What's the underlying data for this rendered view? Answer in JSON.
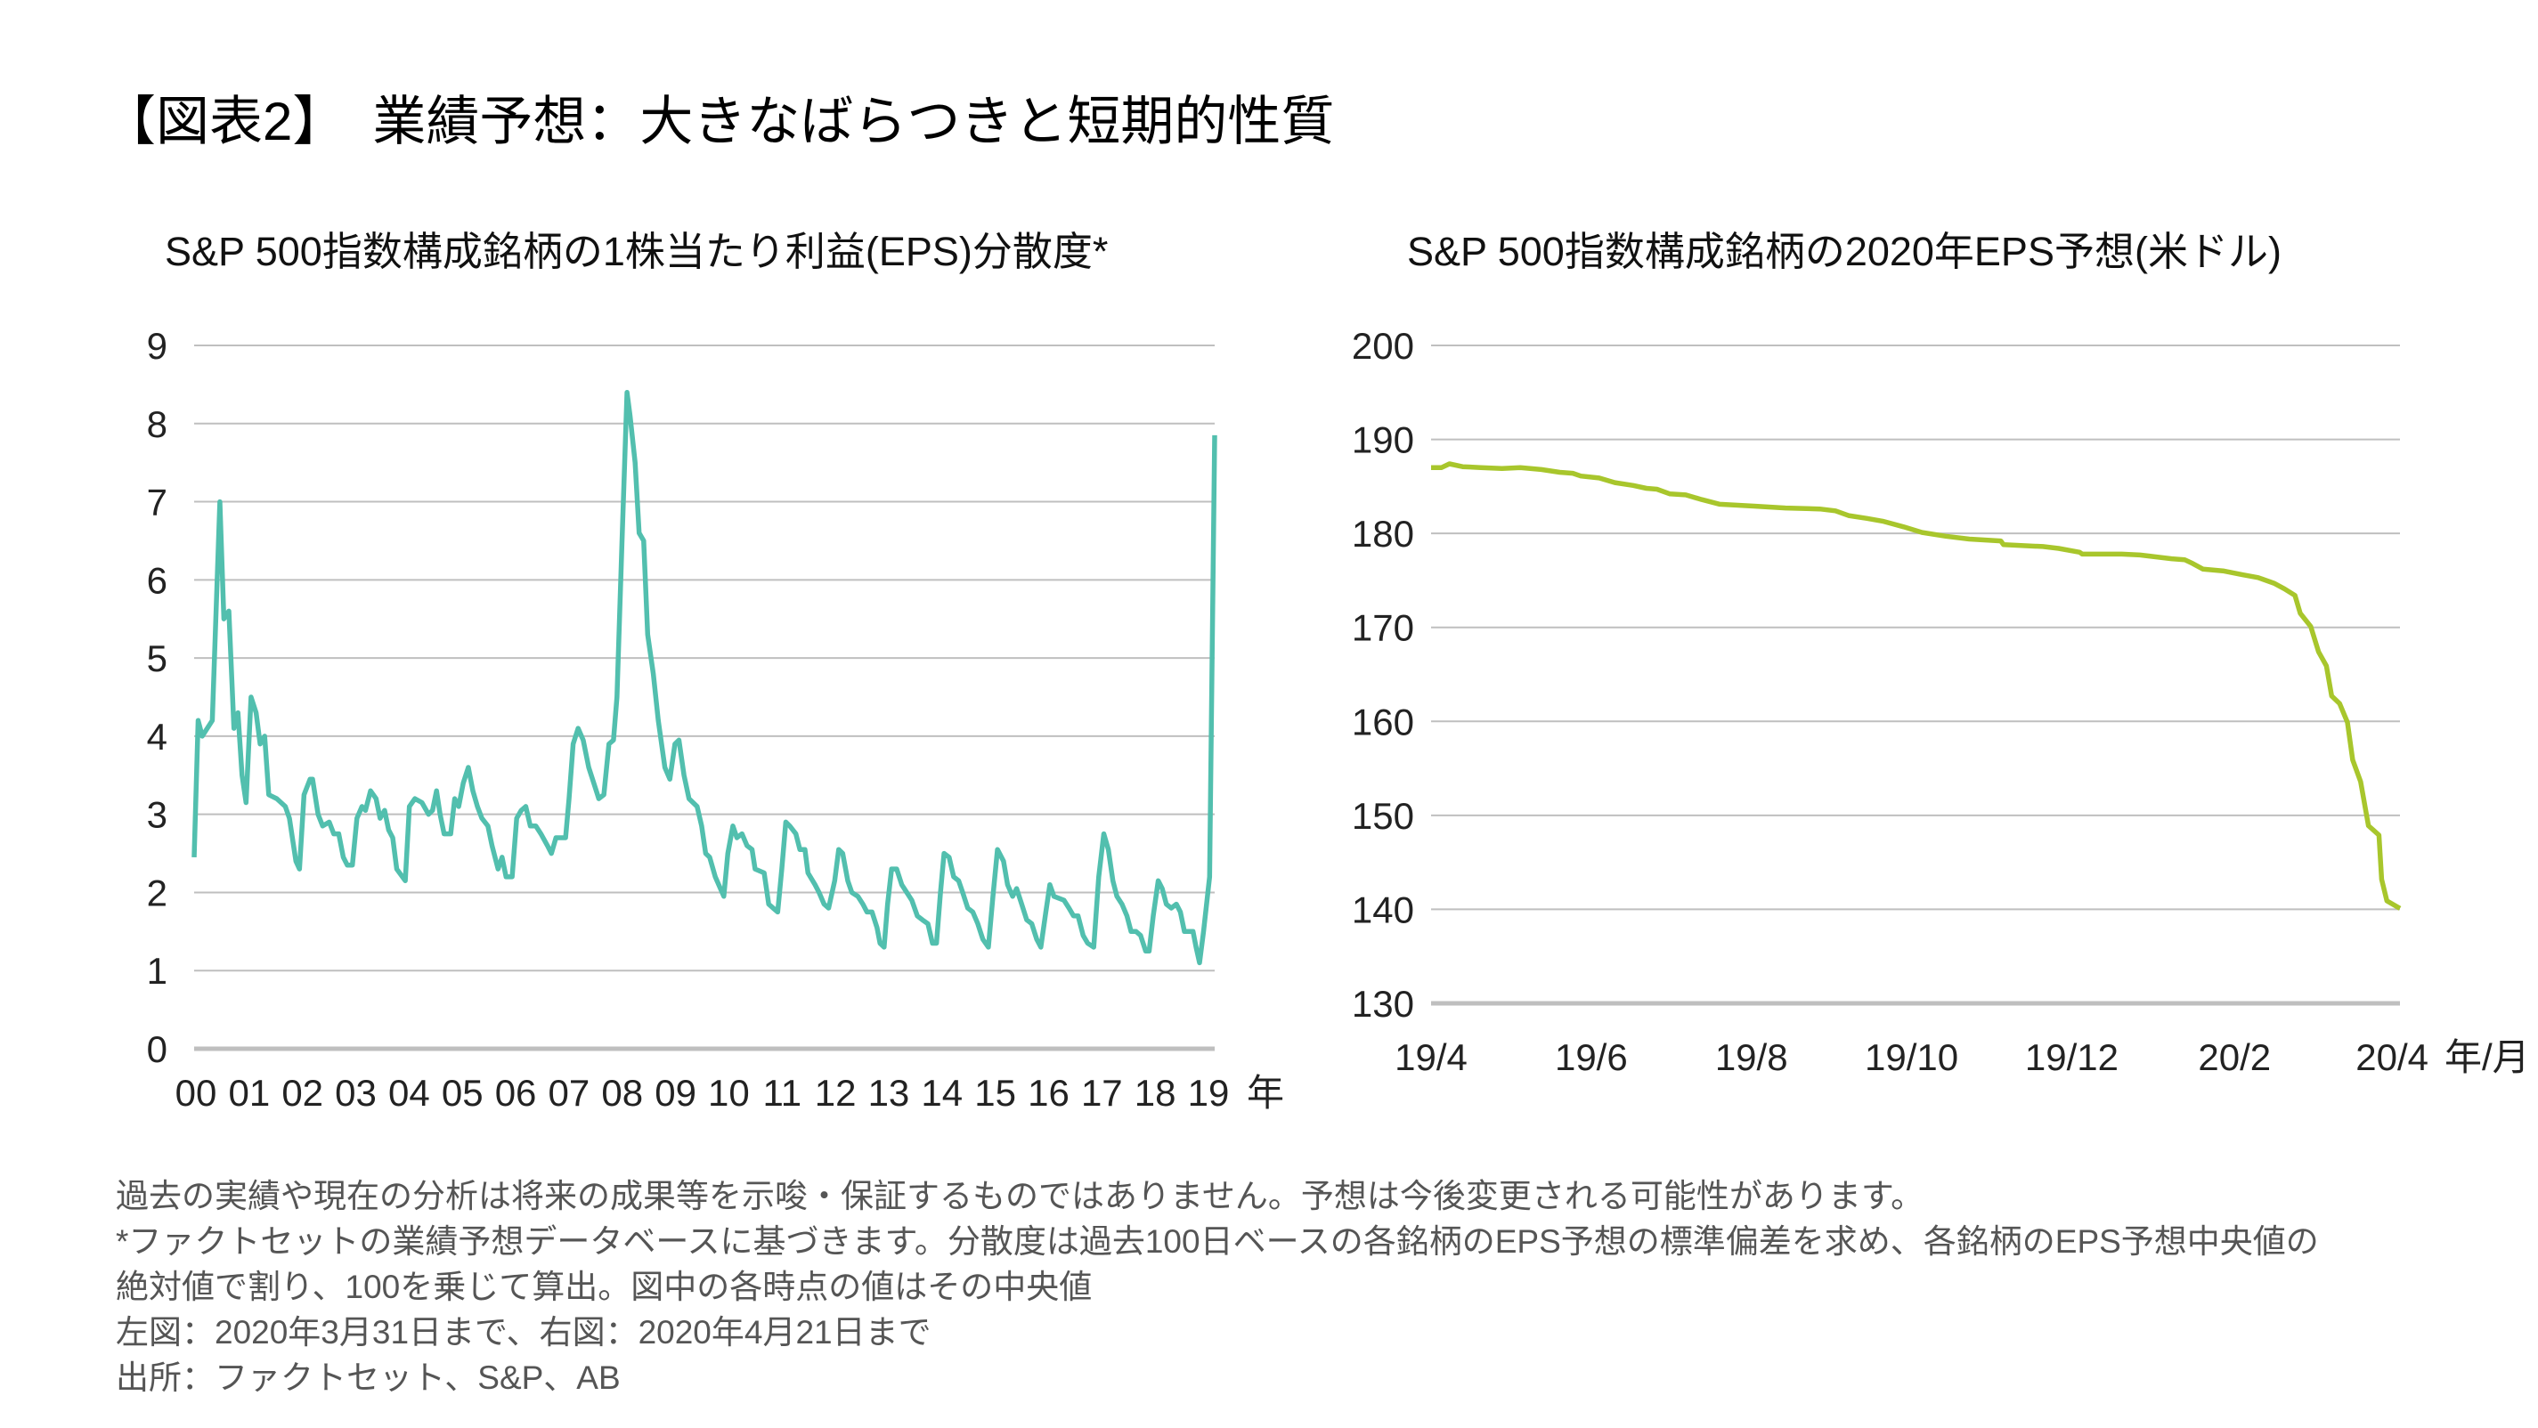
{
  "title": "【図表2】　業績予想：大きなばらつきと短期的性質",
  "footnotes": [
    "過去の実績や現在の分析は将来の成果等を示唆・保証するものではありません。予想は今後変更される可能性があります。",
    "*ファクトセットの業績予想データベースに基づきます。分散度は過去100日ベースの各銘柄のEPS予想の標準偏差を求め、各銘柄のEPS予想中央値の",
    "絶対値で割り、100を乗じて算出。図中の各時点の値はその中央値",
    "左図：2020年3月31日まで、右図：2020年4月21日まで",
    "出所：ファクトセット、S&P、AB"
  ],
  "chart_data": [
    {
      "type": "line",
      "title": "S&P 500指数構成銘柄の1株当たり利益(EPS)分散度*",
      "xlabel": "年",
      "ylabel": "",
      "color": "#52bfae",
      "ylim": [
        0,
        9
      ],
      "yticks": [
        0,
        1,
        2,
        3,
        4,
        5,
        6,
        7,
        8,
        9
      ],
      "xlim": [
        2000.0,
        2020.25
      ],
      "xtick_labels": [
        "00",
        "01",
        "02",
        "03",
        "04",
        "05",
        "06",
        "07",
        "08",
        "09",
        "10",
        "11",
        "12",
        "13",
        "14",
        "15",
        "16",
        "17",
        "18",
        "19"
      ],
      "grid": true,
      "points": [
        [
          2000.0,
          2.45
        ],
        [
          2000.08,
          4.2
        ],
        [
          2000.16,
          4.0
        ],
        [
          2000.36,
          4.2
        ],
        [
          2000.51,
          7.0
        ],
        [
          2000.59,
          5.5
        ],
        [
          2000.69,
          5.6
        ],
        [
          2000.79,
          4.1
        ],
        [
          2000.87,
          4.3
        ],
        [
          2000.95,
          3.5
        ],
        [
          2001.03,
          3.15
        ],
        [
          2001.13,
          4.5
        ],
        [
          2001.23,
          4.3
        ],
        [
          2001.31,
          3.9
        ],
        [
          2001.4,
          4.0
        ],
        [
          2001.48,
          3.25
        ],
        [
          2001.64,
          3.2
        ],
        [
          2001.81,
          3.1
        ],
        [
          2001.89,
          2.95
        ],
        [
          2002.02,
          2.4
        ],
        [
          2002.09,
          2.3
        ],
        [
          2002.18,
          3.25
        ],
        [
          2002.3,
          3.45
        ],
        [
          2002.35,
          3.45
        ],
        [
          2002.46,
          3.0
        ],
        [
          2002.55,
          2.85
        ],
        [
          2002.68,
          2.9
        ],
        [
          2002.77,
          2.75
        ],
        [
          2002.87,
          2.75
        ],
        [
          2002.96,
          2.45
        ],
        [
          2003.04,
          2.35
        ],
        [
          2003.14,
          2.35
        ],
        [
          2003.23,
          2.95
        ],
        [
          2003.33,
          3.1
        ],
        [
          2003.4,
          3.05
        ],
        [
          2003.5,
          3.3
        ],
        [
          2003.61,
          3.2
        ],
        [
          2003.69,
          2.95
        ],
        [
          2003.78,
          3.05
        ],
        [
          2003.86,
          2.8
        ],
        [
          2003.94,
          2.7
        ],
        [
          2004.02,
          2.3
        ],
        [
          2004.19,
          2.15
        ],
        [
          2004.27,
          3.1
        ],
        [
          2004.38,
          3.2
        ],
        [
          2004.52,
          3.15
        ],
        [
          2004.65,
          3.0
        ],
        [
          2004.73,
          3.05
        ],
        [
          2004.81,
          3.3
        ],
        [
          2004.88,
          3.0
        ],
        [
          2004.96,
          2.75
        ],
        [
          2005.09,
          2.75
        ],
        [
          2005.17,
          3.2
        ],
        [
          2005.25,
          3.1
        ],
        [
          2005.34,
          3.4
        ],
        [
          2005.44,
          3.6
        ],
        [
          2005.53,
          3.3
        ],
        [
          2005.62,
          3.1
        ],
        [
          2005.71,
          2.95
        ],
        [
          2005.83,
          2.85
        ],
        [
          2005.91,
          2.6
        ],
        [
          2006.03,
          2.3
        ],
        [
          2006.11,
          2.45
        ],
        [
          2006.19,
          2.2
        ],
        [
          2006.31,
          2.2
        ],
        [
          2006.4,
          2.95
        ],
        [
          2006.49,
          3.05
        ],
        [
          2006.58,
          3.1
        ],
        [
          2006.67,
          2.85
        ],
        [
          2006.78,
          2.85
        ],
        [
          2006.88,
          2.75
        ],
        [
          2007.01,
          2.6
        ],
        [
          2007.09,
          2.5
        ],
        [
          2007.18,
          2.7
        ],
        [
          2007.37,
          2.7
        ],
        [
          2007.44,
          3.2
        ],
        [
          2007.52,
          3.9
        ],
        [
          2007.62,
          4.1
        ],
        [
          2007.72,
          3.95
        ],
        [
          2007.83,
          3.6
        ],
        [
          2007.93,
          3.4
        ],
        [
          2008.03,
          3.2
        ],
        [
          2008.13,
          3.25
        ],
        [
          2008.23,
          3.9
        ],
        [
          2008.32,
          3.95
        ],
        [
          2008.39,
          4.5
        ],
        [
          2008.49,
          6.5
        ],
        [
          2008.59,
          8.4
        ],
        [
          2008.65,
          8.1
        ],
        [
          2008.75,
          7.5
        ],
        [
          2008.83,
          6.6
        ],
        [
          2008.92,
          6.5
        ],
        [
          2009.0,
          5.3
        ],
        [
          2009.11,
          4.8
        ],
        [
          2009.21,
          4.2
        ],
        [
          2009.34,
          3.6
        ],
        [
          2009.44,
          3.45
        ],
        [
          2009.54,
          3.9
        ],
        [
          2009.62,
          3.95
        ],
        [
          2009.72,
          3.5
        ],
        [
          2009.82,
          3.2
        ],
        [
          2009.98,
          3.1
        ],
        [
          2010.07,
          2.85
        ],
        [
          2010.15,
          2.5
        ],
        [
          2010.23,
          2.45
        ],
        [
          2010.34,
          2.2
        ],
        [
          2010.51,
          1.95
        ],
        [
          2010.59,
          2.5
        ],
        [
          2010.69,
          2.85
        ],
        [
          2010.77,
          2.7
        ],
        [
          2010.87,
          2.75
        ],
        [
          2010.97,
          2.6
        ],
        [
          2011.07,
          2.55
        ],
        [
          2011.13,
          2.3
        ],
        [
          2011.31,
          2.25
        ],
        [
          2011.4,
          1.85
        ],
        [
          2011.49,
          1.8
        ],
        [
          2011.58,
          1.75
        ],
        [
          2011.66,
          2.3
        ],
        [
          2011.74,
          2.9
        ],
        [
          2011.82,
          2.85
        ],
        [
          2011.94,
          2.75
        ],
        [
          2012.02,
          2.55
        ],
        [
          2012.12,
          2.55
        ],
        [
          2012.18,
          2.25
        ],
        [
          2012.32,
          2.1
        ],
        [
          2012.4,
          2.0
        ],
        [
          2012.5,
          1.85
        ],
        [
          2012.59,
          1.8
        ],
        [
          2012.71,
          2.15
        ],
        [
          2012.79,
          2.55
        ],
        [
          2012.87,
          2.5
        ],
        [
          2012.97,
          2.15
        ],
        [
          2013.05,
          2.0
        ],
        [
          2013.17,
          1.95
        ],
        [
          2013.27,
          1.85
        ],
        [
          2013.35,
          1.75
        ],
        [
          2013.45,
          1.75
        ],
        [
          2013.55,
          1.55
        ],
        [
          2013.61,
          1.35
        ],
        [
          2013.69,
          1.3
        ],
        [
          2013.76,
          1.85
        ],
        [
          2013.84,
          2.3
        ],
        [
          2013.94,
          2.3
        ],
        [
          2014.04,
          2.1
        ],
        [
          2014.14,
          2.0
        ],
        [
          2014.24,
          1.9
        ],
        [
          2014.35,
          1.7
        ],
        [
          2014.45,
          1.65
        ],
        [
          2014.56,
          1.6
        ],
        [
          2014.65,
          1.35
        ],
        [
          2014.73,
          1.35
        ],
        [
          2014.81,
          2.0
        ],
        [
          2014.88,
          2.5
        ],
        [
          2014.98,
          2.45
        ],
        [
          2015.07,
          2.2
        ],
        [
          2015.17,
          2.15
        ],
        [
          2015.25,
          2.0
        ],
        [
          2015.35,
          1.8
        ],
        [
          2015.45,
          1.75
        ],
        [
          2015.55,
          1.6
        ],
        [
          2015.65,
          1.4
        ],
        [
          2015.76,
          1.3
        ],
        [
          2015.85,
          1.95
        ],
        [
          2015.94,
          2.55
        ],
        [
          2016.06,
          2.4
        ],
        [
          2016.14,
          2.1
        ],
        [
          2016.24,
          1.95
        ],
        [
          2016.32,
          2.05
        ],
        [
          2016.42,
          1.85
        ],
        [
          2016.52,
          1.65
        ],
        [
          2016.62,
          1.6
        ],
        [
          2016.72,
          1.4
        ],
        [
          2016.8,
          1.3
        ],
        [
          2016.9,
          1.75
        ],
        [
          2016.98,
          2.1
        ],
        [
          2017.06,
          1.95
        ],
        [
          2017.26,
          1.9
        ],
        [
          2017.36,
          1.8
        ],
        [
          2017.45,
          1.7
        ],
        [
          2017.54,
          1.7
        ],
        [
          2017.64,
          1.45
        ],
        [
          2017.73,
          1.35
        ],
        [
          2017.85,
          1.3
        ],
        [
          2017.95,
          2.2
        ],
        [
          2018.05,
          2.75
        ],
        [
          2018.14,
          2.55
        ],
        [
          2018.23,
          2.15
        ],
        [
          2018.31,
          1.95
        ],
        [
          2018.41,
          1.85
        ],
        [
          2018.51,
          1.7
        ],
        [
          2018.59,
          1.5
        ],
        [
          2018.69,
          1.5
        ],
        [
          2018.78,
          1.45
        ],
        [
          2018.88,
          1.25
        ],
        [
          2018.95,
          1.25
        ],
        [
          2019.03,
          1.7
        ],
        [
          2019.13,
          2.15
        ],
        [
          2019.21,
          2.05
        ],
        [
          2019.29,
          1.85
        ],
        [
          2019.39,
          1.8
        ],
        [
          2019.49,
          1.85
        ],
        [
          2019.57,
          1.75
        ],
        [
          2019.65,
          1.5
        ],
        [
          2019.82,
          1.5
        ],
        [
          2019.88,
          1.3
        ],
        [
          2019.95,
          1.1
        ],
        [
          2020.03,
          1.5
        ],
        [
          2020.15,
          2.2
        ],
        [
          2020.25,
          7.85
        ]
      ]
    },
    {
      "type": "line",
      "title": "S&P 500指数構成銘柄の2020年EPS予想(米ドル)",
      "xlabel": "年/月",
      "ylabel": "",
      "color": "#a8c62c",
      "ylim": [
        130,
        200
      ],
      "yticks": [
        130,
        140,
        150,
        160,
        170,
        180,
        190,
        200
      ],
      "xlim": [
        "2019-04-01",
        "2020-04-04"
      ],
      "xticks": [
        [
          "19/4",
          "2019-04-01"
        ],
        [
          "19/6",
          "2019-06-01"
        ],
        [
          "19/8",
          "2019-08-01"
        ],
        [
          "19/10",
          "2019-10-01"
        ],
        [
          "19/12",
          "2019-12-01"
        ],
        [
          "20/2",
          "2020-02-01"
        ],
        [
          "20/4",
          "2020-04-01"
        ]
      ],
      "grid": true,
      "points": [
        [
          "2019-04-01",
          187.0
        ],
        [
          "2019-04-05",
          187.0
        ],
        [
          "2019-04-08",
          187.4
        ],
        [
          "2019-04-13",
          187.1
        ],
        [
          "2019-04-20",
          187.0
        ],
        [
          "2019-04-28",
          186.9
        ],
        [
          "2019-05-05",
          187.0
        ],
        [
          "2019-05-13",
          186.8
        ],
        [
          "2019-05-20",
          186.5
        ],
        [
          "2019-05-25",
          186.4
        ],
        [
          "2019-05-28",
          186.1
        ],
        [
          "2019-06-04",
          185.9
        ],
        [
          "2019-06-10",
          185.4
        ],
        [
          "2019-06-17",
          185.1
        ],
        [
          "2019-06-22",
          184.8
        ],
        [
          "2019-06-26",
          184.7
        ],
        [
          "2019-07-01",
          184.2
        ],
        [
          "2019-07-07",
          184.1
        ],
        [
          "2019-07-13",
          183.6
        ],
        [
          "2019-07-20",
          183.1
        ],
        [
          "2019-08-02",
          182.9
        ],
        [
          "2019-08-14",
          182.7
        ],
        [
          "2019-08-27",
          182.6
        ],
        [
          "2019-09-02",
          182.4
        ],
        [
          "2019-09-07",
          181.9
        ],
        [
          "2019-09-14",
          181.6
        ],
        [
          "2019-09-20",
          181.3
        ],
        [
          "2019-09-28",
          180.7
        ],
        [
          "2019-10-05",
          180.1
        ],
        [
          "2019-10-14",
          179.7
        ],
        [
          "2019-10-23",
          179.4
        ],
        [
          "2019-11-04",
          179.2
        ],
        [
          "2019-11-05",
          178.8
        ],
        [
          "2019-11-20",
          178.6
        ],
        [
          "2019-11-26",
          178.4
        ],
        [
          "2019-12-04",
          178.0
        ],
        [
          "2019-12-05",
          177.8
        ],
        [
          "2019-12-20",
          177.8
        ],
        [
          "2019-12-27",
          177.7
        ],
        [
          "2020-01-02",
          177.5
        ],
        [
          "2020-01-08",
          177.3
        ],
        [
          "2020-01-13",
          177.2
        ],
        [
          "2020-01-16",
          176.8
        ],
        [
          "2020-01-20",
          176.2
        ],
        [
          "2020-01-28",
          176.0
        ],
        [
          "2020-02-04",
          175.6
        ],
        [
          "2020-02-10",
          175.3
        ],
        [
          "2020-02-16",
          174.7
        ],
        [
          "2020-02-20",
          174.1
        ],
        [
          "2020-02-24",
          173.4
        ],
        [
          "2020-02-26",
          171.5
        ],
        [
          "2020-03-01",
          170.1
        ],
        [
          "2020-03-04",
          167.4
        ],
        [
          "2020-03-07",
          165.9
        ],
        [
          "2020-03-09",
          162.7
        ],
        [
          "2020-03-12",
          161.9
        ],
        [
          "2020-03-15",
          159.9
        ],
        [
          "2020-03-17",
          155.9
        ],
        [
          "2020-03-20",
          153.6
        ],
        [
          "2020-03-23",
          148.9
        ],
        [
          "2020-03-27",
          147.9
        ],
        [
          "2020-03-28",
          143.2
        ],
        [
          "2020-03-30",
          140.9
        ],
        [
          "2020-04-04",
          140.1
        ]
      ]
    }
  ]
}
